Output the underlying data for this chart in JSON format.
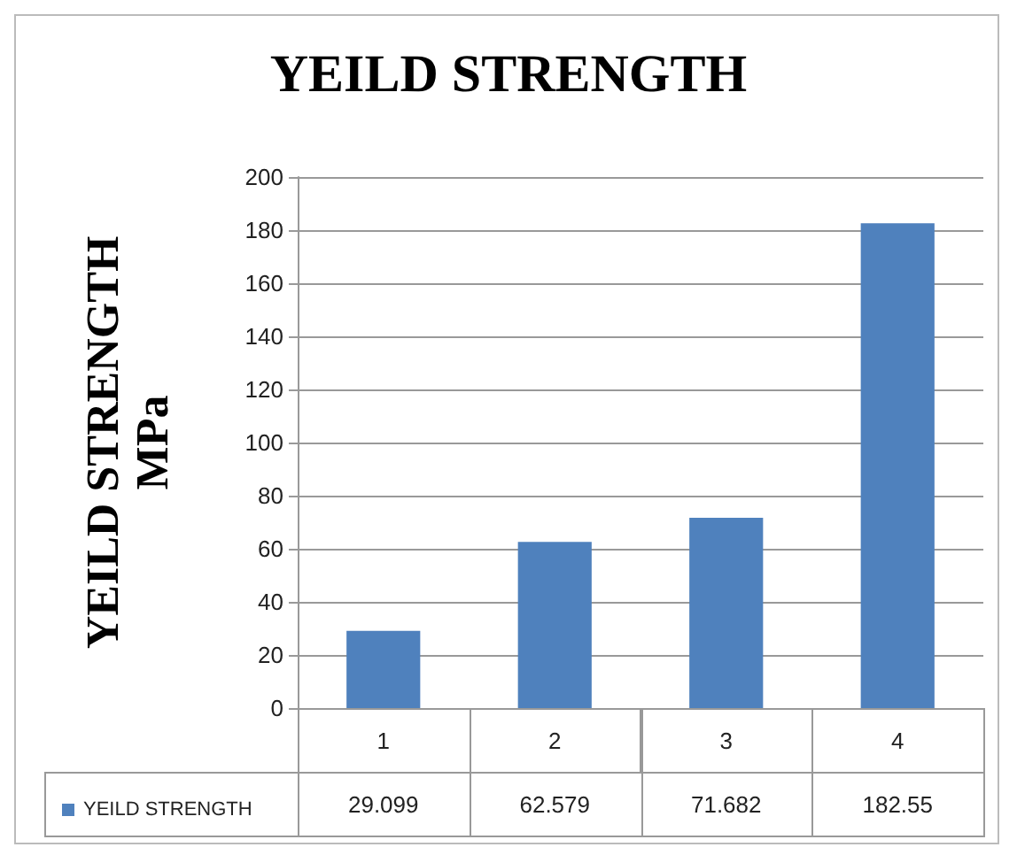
{
  "chart_data": {
    "type": "bar",
    "title": "YEILD STRENGTH",
    "ylabel": "YEILD STRENGTH\nMPa",
    "categories": [
      "1",
      "2",
      "3",
      "4"
    ],
    "series": [
      {
        "name": "YEILD STRENGTH",
        "color": "#4f81bd",
        "values": [
          29.099,
          62.579,
          71.682,
          182.55
        ]
      }
    ],
    "ylim": [
      0,
      200
    ],
    "yticks": [
      0,
      20,
      40,
      60,
      80,
      100,
      120,
      140,
      160,
      180,
      200
    ],
    "grid": "y",
    "legend": "bottom",
    "data_labels": true
  }
}
